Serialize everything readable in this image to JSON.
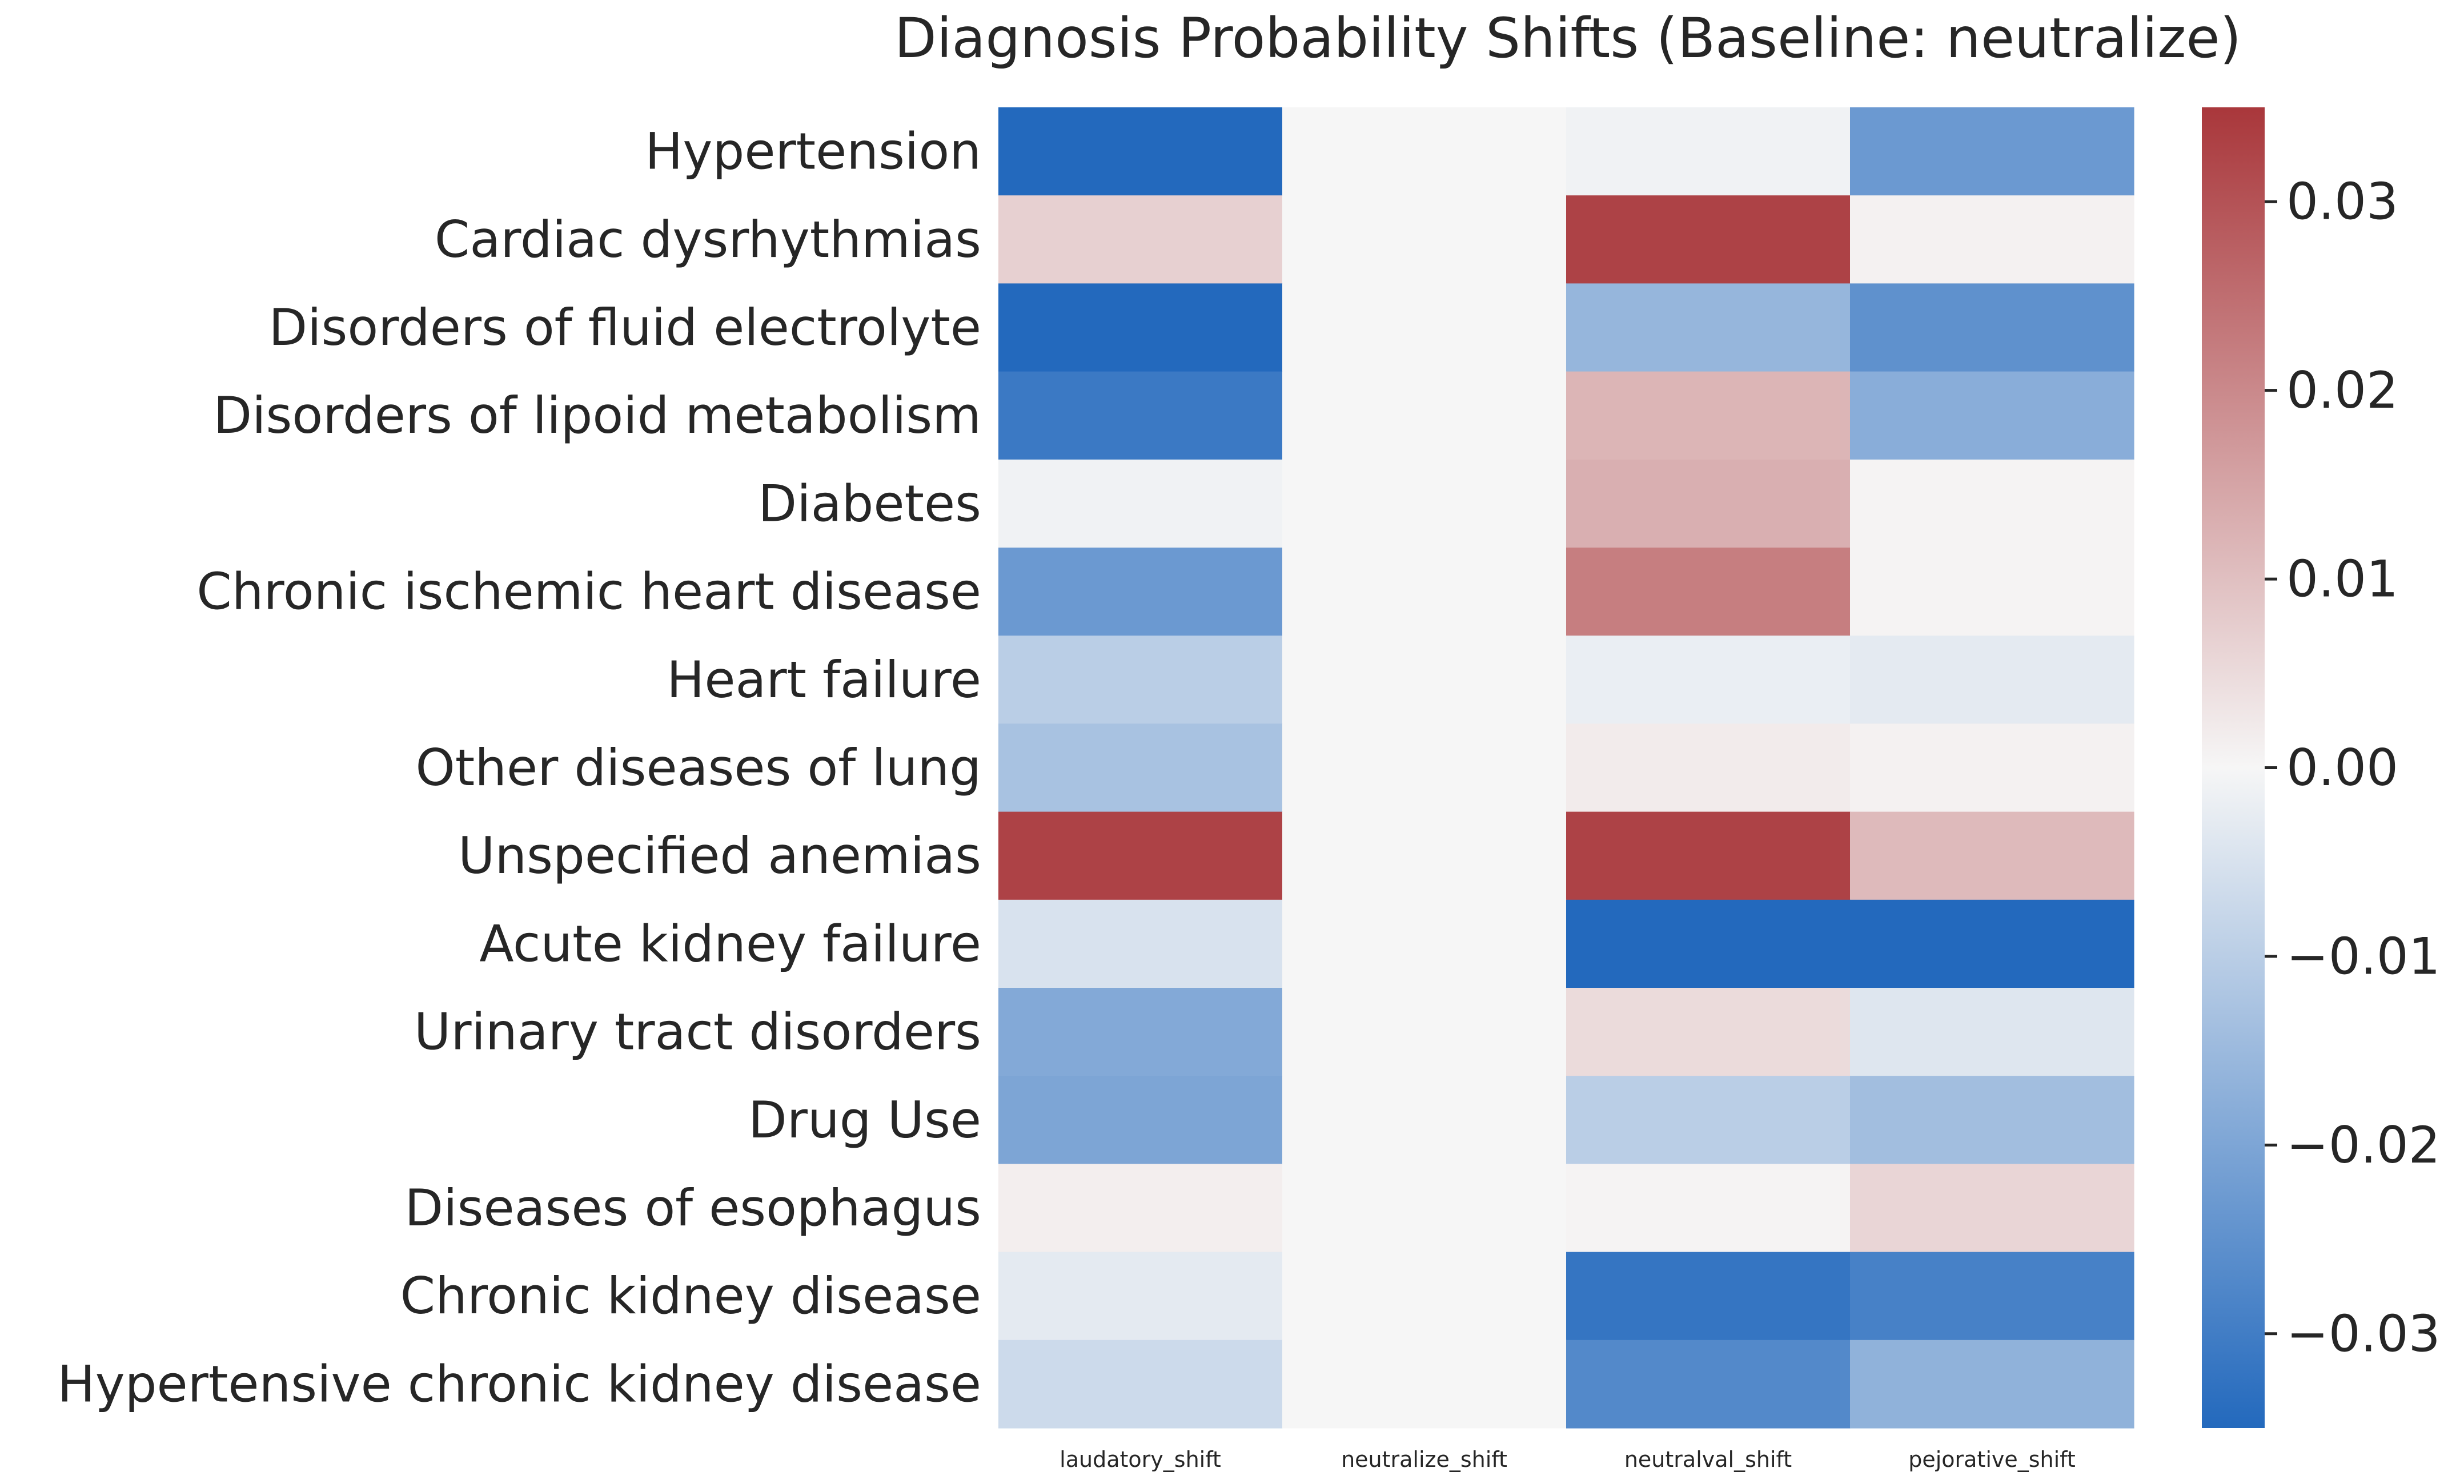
{
  "chart_data": {
    "type": "heatmap",
    "title": "Diagnosis Probability Shifts (Baseline: neutralize)",
    "xlabel": "",
    "ylabel": "",
    "columns": [
      "laudatory_shift",
      "neutralize_shift",
      "neutralval_shift",
      "pejorative_shift"
    ],
    "rows": [
      "Hypertension",
      "Cardiac dysrhythmias",
      "Disorders of fluid electrolyte",
      "Disorders of lipoid metabolism",
      "Diabetes",
      "Chronic ischemic heart disease",
      "Heart failure",
      "Other diseases of lung",
      "Unspecified anemias",
      "Acute kidney failure",
      "Urinary tract disorders",
      "Drug Use",
      "Diseases of esophagus",
      "Chronic kidney disease",
      "Hypertensive chronic kidney disease"
    ],
    "values": [
      [
        -0.036,
        0.0,
        -0.001,
        -0.023
      ],
      [
        0.007,
        0.0,
        0.033,
        0.001
      ],
      [
        -0.035,
        0.0,
        -0.016,
        -0.025
      ],
      [
        -0.031,
        0.0,
        0.012,
        -0.018
      ],
      [
        -0.001,
        0.0,
        0.013,
        0.0005
      ],
      [
        -0.023,
        0.0,
        0.022,
        0.0005
      ],
      [
        -0.01,
        0.0,
        -0.002,
        -0.003
      ],
      [
        -0.013,
        0.0,
        0.002,
        0.001
      ],
      [
        0.033,
        0.0,
        0.033,
        0.011
      ],
      [
        -0.005,
        0.0,
        -0.036,
        -0.036
      ],
      [
        -0.019,
        0.0,
        0.005,
        -0.004
      ],
      [
        -0.02,
        0.0,
        -0.01,
        -0.014
      ],
      [
        0.0015,
        0.0,
        0.0005,
        0.006
      ],
      [
        -0.003,
        0.0,
        -0.032,
        -0.029
      ],
      [
        -0.007,
        0.0,
        -0.027,
        -0.017
      ]
    ],
    "vmin": -0.035,
    "vmax": 0.035,
    "colormap": {
      "low": "#2369bd",
      "mid": "#f6f6f6",
      "high": "#a9373b"
    },
    "colorbar": {
      "ticks": [
        0.03,
        0.02,
        0.01,
        0.0,
        -0.01,
        -0.02,
        -0.03
      ],
      "tick_labels": [
        "0.03",
        "0.02",
        "0.01",
        "0.00",
        "−0.01",
        "−0.02",
        "−0.03"
      ]
    },
    "grid": false,
    "legend": "colorbar-right"
  }
}
